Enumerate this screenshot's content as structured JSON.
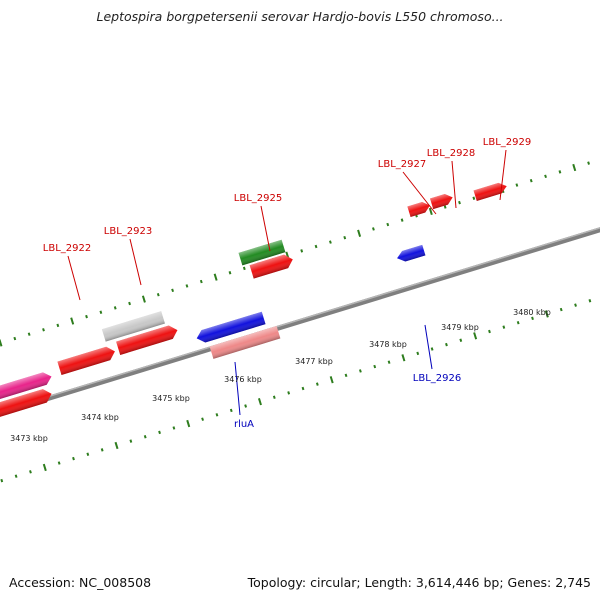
{
  "title": "Leptospira borgpetersenii serovar Hardjo-bovis L550 chromoso...",
  "footer": {
    "accession": "Accession: NC_008508",
    "summary": "Topology: circular; Length: 3,614,446 bp; Genes: 2,745"
  },
  "colors": {
    "backbone": "#7f7f7f",
    "tick": "#2e7d1e",
    "label_forward": "#cc0000",
    "label_reverse": "#0000bb",
    "scale_text": "#222222"
  },
  "scale_labels": [
    "3473 kbp",
    "3474 kbp",
    "3475 kbp",
    "3476 kbp",
    "3477 kbp",
    "3478 kbp",
    "3479 kbp",
    "3480 kbp"
  ],
  "gene_labels": {
    "forward": [
      "LBL_2922",
      "LBL_2923",
      "LBL_2925",
      "LBL_2927",
      "LBL_2928",
      "LBL_2929"
    ],
    "reverse": [
      "rluA",
      "LBL_2926"
    ]
  },
  "features": [
    {
      "name": "magenta-feature",
      "color": "#e8238a",
      "strand": "forward"
    },
    {
      "name": "red-feature",
      "color": "#ee1111",
      "strand": "forward"
    },
    {
      "name": "grey-feature",
      "color": "#c8c8c8",
      "strand": "forward"
    },
    {
      "name": "green-feature",
      "color": "#228b22",
      "strand": "forward"
    },
    {
      "name": "blue-feature",
      "color": "#1111dd",
      "strand": "reverse"
    },
    {
      "name": "pink-feature",
      "color": "#ee8888",
      "strand": "forward"
    }
  ]
}
